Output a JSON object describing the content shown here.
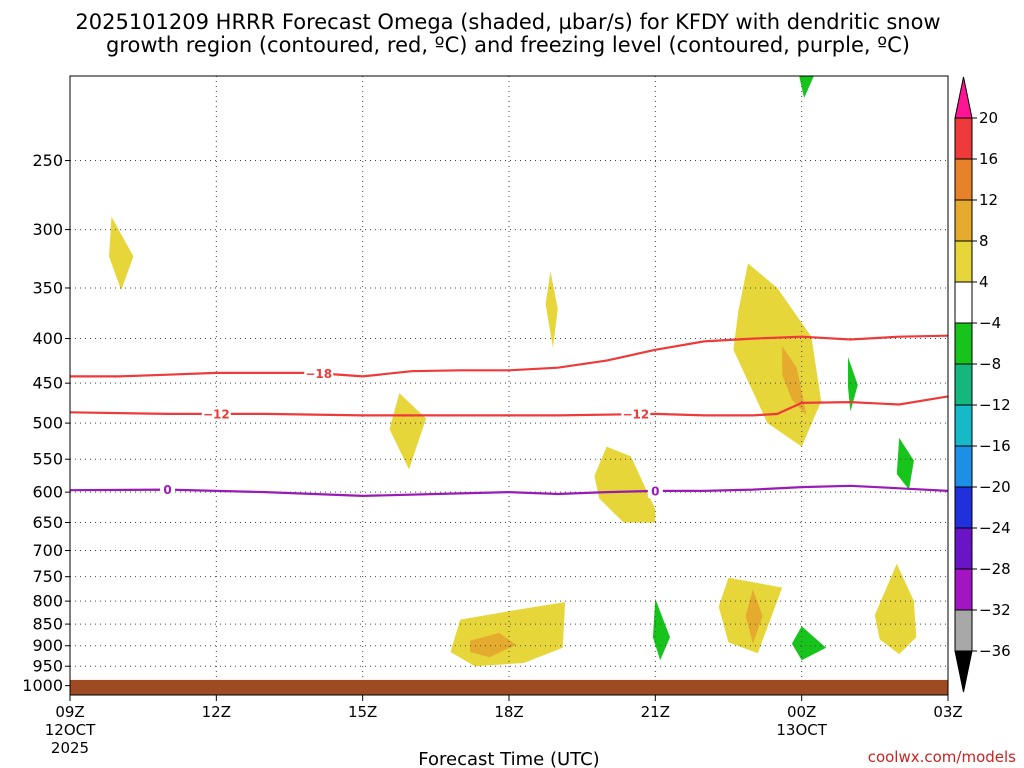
{
  "chart_data": {
    "type": "time-height contour plot",
    "title_line1": "2025101209 HRRR Forecast Omega (shaded, µbar/s) for KFDY with dendritic snow",
    "title_line2": "growth region (contoured, red, ºC) and freezing level (contoured, purple, ºC)",
    "xlabel": "Forecast Time (UTC)",
    "x_ticks": [
      {
        "hour": 0,
        "label": "09Z",
        "sub1": "12OCT",
        "sub2": "2025"
      },
      {
        "hour": 3,
        "label": "12Z"
      },
      {
        "hour": 6,
        "label": "15Z"
      },
      {
        "hour": 9,
        "label": "18Z"
      },
      {
        "hour": 12,
        "label": "21Z"
      },
      {
        "hour": 15,
        "label": "00Z",
        "sub1": "13OCT"
      },
      {
        "hour": 18,
        "label": "03Z"
      }
    ],
    "y_ticks": [
      250,
      300,
      350,
      400,
      450,
      500,
      550,
      600,
      650,
      700,
      750,
      800,
      850,
      900,
      950,
      1000
    ],
    "ylim_hpa": [
      200,
      1025
    ],
    "xlim_hours": [
      0,
      18
    ],
    "ground_level_hpa": 985,
    "colorbar_labels": [
      "20",
      "16",
      "12",
      "8",
      "4",
      "−4",
      "−8",
      "−12",
      "−16",
      "−20",
      "−24",
      "−28",
      "−32",
      "−36"
    ],
    "colorbar_colors": [
      "#ff1493",
      "#ee3a3a",
      "#e8822a",
      "#e5ab2f",
      "#e6d639",
      "#ffffff",
      "#16c41c",
      "#14b77e",
      "#16b9c7",
      "#1e8fe6",
      "#2030dd",
      "#6a14c8",
      "#a314c3",
      "#a8a8a8",
      "#000000"
    ],
    "isotherms": [
      {
        "value": "−18",
        "color": "#ee3a3a",
        "label_hour": 5.1,
        "points": [
          [
            0,
            442
          ],
          [
            1,
            442
          ],
          [
            2,
            440
          ],
          [
            3,
            438
          ],
          [
            4,
            438
          ],
          [
            5,
            438
          ],
          [
            6,
            442
          ],
          [
            7,
            436
          ],
          [
            8,
            435
          ],
          [
            9,
            435
          ],
          [
            10,
            432
          ],
          [
            11,
            424
          ],
          [
            12,
            412
          ],
          [
            13,
            403
          ],
          [
            14,
            400
          ],
          [
            15,
            398
          ],
          [
            16,
            401
          ],
          [
            17,
            398
          ],
          [
            18,
            397
          ]
        ]
      },
      {
        "value": "−12",
        "color": "#ee3a3a",
        "label_hour": 3.0,
        "points": [
          [
            0,
            486
          ],
          [
            2,
            488
          ],
          [
            4,
            488
          ],
          [
            6,
            490
          ],
          [
            8,
            490
          ],
          [
            10,
            490
          ],
          [
            12,
            488
          ],
          [
            13,
            490
          ],
          [
            14,
            490
          ],
          [
            14.5,
            488
          ],
          [
            15,
            474
          ],
          [
            16,
            473
          ],
          [
            17,
            476
          ],
          [
            18,
            466
          ]
        ]
      },
      {
        "value": "−12",
        "color": "#ee3a3a",
        "label_hour": 11.6,
        "points": []
      },
      {
        "value": "0",
        "color": "#9a1ab6",
        "label_hour": 2.0,
        "points": [
          [
            0,
            597
          ],
          [
            2,
            596
          ],
          [
            4,
            600
          ],
          [
            6,
            606
          ],
          [
            8,
            602
          ],
          [
            9,
            600
          ],
          [
            10,
            603
          ],
          [
            11,
            600
          ],
          [
            12,
            598
          ],
          [
            13,
            598
          ],
          [
            14,
            596
          ],
          [
            15,
            592
          ],
          [
            16,
            590
          ],
          [
            17,
            594
          ],
          [
            18,
            598
          ]
        ]
      },
      {
        "value": "0",
        "color": "#9a1ab6",
        "label_hour": 12.0,
        "points": []
      }
    ],
    "omega_regions": [
      {
        "level": "4",
        "color": "#e6d639",
        "points": [
          [
            0.85,
            290
          ],
          [
            1.3,
            322
          ],
          [
            1.05,
            352
          ],
          [
            0.8,
            322
          ]
        ]
      },
      {
        "level": "4",
        "color": "#e6d639",
        "points": [
          [
            9.85,
            335
          ],
          [
            10.0,
            370
          ],
          [
            9.9,
            410
          ],
          [
            9.75,
            365
          ]
        ]
      },
      {
        "level": "4",
        "color": "#e6d639",
        "points": [
          [
            6.75,
            462
          ],
          [
            7.3,
            494
          ],
          [
            6.95,
            565
          ],
          [
            6.55,
            508
          ]
        ]
      },
      {
        "level": "4",
        "color": "#e6d639",
        "points": [
          [
            11.0,
            532
          ],
          [
            11.5,
            546
          ],
          [
            12.0,
            628
          ],
          [
            12.0,
            650
          ],
          [
            11.35,
            650
          ],
          [
            10.85,
            610
          ],
          [
            10.75,
            575
          ]
        ]
      },
      {
        "level": "4",
        "color": "#e6d639",
        "points": [
          [
            13.9,
            328
          ],
          [
            14.5,
            350
          ],
          [
            15.2,
            398
          ],
          [
            15.4,
            472
          ],
          [
            15.0,
            532
          ],
          [
            14.3,
            500
          ],
          [
            13.6,
            412
          ],
          [
            13.7,
            372
          ]
        ]
      },
      {
        "level": "8",
        "color": "#e5ab2f",
        "points": [
          [
            14.6,
            408
          ],
          [
            14.9,
            432
          ],
          [
            15.1,
            490
          ],
          [
            14.8,
            470
          ],
          [
            14.6,
            440
          ]
        ]
      },
      {
        "level": "4",
        "color": "#e6d639",
        "points": [
          [
            8.0,
            840
          ],
          [
            9.2,
            818
          ],
          [
            10.15,
            802
          ],
          [
            10.1,
            905
          ],
          [
            9.3,
            942
          ],
          [
            8.3,
            950
          ],
          [
            7.8,
            915
          ]
        ]
      },
      {
        "level": "8",
        "color": "#e5ab2f",
        "points": [
          [
            8.2,
            888
          ],
          [
            8.8,
            870
          ],
          [
            9.15,
            898
          ],
          [
            8.6,
            928
          ],
          [
            8.2,
            915
          ]
        ]
      },
      {
        "level": "4",
        "color": "#e6d639",
        "points": [
          [
            13.5,
            752
          ],
          [
            14.6,
            772
          ],
          [
            14.1,
            918
          ],
          [
            13.5,
            892
          ],
          [
            13.3,
            812
          ]
        ]
      },
      {
        "level": "8",
        "color": "#e5ab2f",
        "points": [
          [
            14.0,
            775
          ],
          [
            14.2,
            832
          ],
          [
            14.0,
            895
          ],
          [
            13.85,
            832
          ]
        ]
      },
      {
        "level": "4",
        "color": "#e6d639",
        "points": [
          [
            16.95,
            725
          ],
          [
            17.3,
            800
          ],
          [
            17.35,
            880
          ],
          [
            17.0,
            920
          ],
          [
            16.6,
            885
          ],
          [
            16.5,
            830
          ]
        ]
      },
      {
        "level": "−4",
        "color": "#16c41c",
        "points": [
          [
            12.0,
            795
          ],
          [
            12.3,
            880
          ],
          [
            12.1,
            935
          ],
          [
            11.95,
            880
          ]
        ]
      },
      {
        "level": "−4",
        "color": "#16c41c",
        "points": [
          [
            15.0,
            855
          ],
          [
            15.5,
            905
          ],
          [
            15.0,
            935
          ],
          [
            14.8,
            895
          ]
        ]
      },
      {
        "level": "−4",
        "color": "#16c41c",
        "points": [
          [
            15.95,
            420
          ],
          [
            16.15,
            452
          ],
          [
            16.0,
            485
          ],
          [
            15.95,
            455
          ]
        ]
      },
      {
        "level": "−4",
        "color": "#16c41c",
        "points": [
          [
            17.0,
            520
          ],
          [
            17.3,
            552
          ],
          [
            17.2,
            596
          ],
          [
            16.95,
            572
          ]
        ]
      },
      {
        "level": "−4",
        "color": "#16c41c",
        "points": [
          [
            14.95,
            200
          ],
          [
            15.25,
            200
          ],
          [
            15.05,
            212
          ]
        ]
      }
    ]
  },
  "footer": {
    "credit": "coolwx.com/models"
  }
}
